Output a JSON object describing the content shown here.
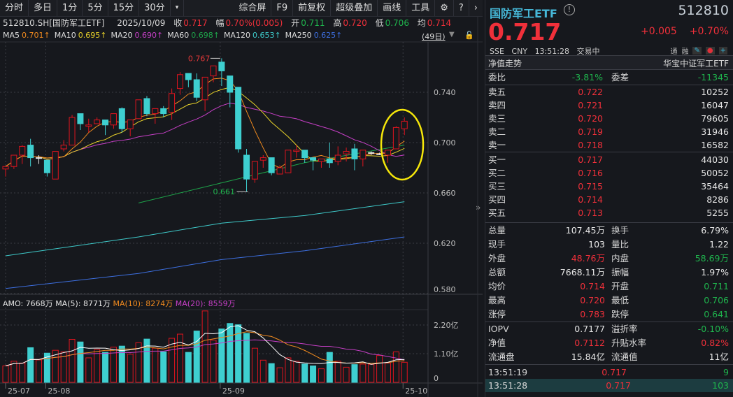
{
  "toolbar": {
    "left": [
      "分时",
      "多日",
      "1分",
      "5分",
      "15分",
      "30分"
    ],
    "dropdown_icon": "caret-down-icon",
    "right": [
      "综合屏",
      "F9",
      "前复权",
      "超级叠加",
      "画线",
      "工具"
    ],
    "icons": [
      "gear-icon",
      "help-icon",
      "chevron-right-icon"
    ]
  },
  "info": {
    "symbol": "512810.SH[国防军工ETF]",
    "date": "2025/10/09",
    "close_label": "收",
    "close": "0.717",
    "change_label": "幅",
    "change": "0.70%(0.005)",
    "open_label": "开",
    "open": "0.711",
    "high_label": "高",
    "high": "0.720",
    "low_label": "低",
    "low": "0.706",
    "avg_label": "均",
    "avg": "0.714"
  },
  "ma_legend": [
    {
      "label": "MA5",
      "value": "0.701↑",
      "color": "#f08a1e"
    },
    {
      "label": "MA10",
      "value": "0.695↑",
      "color": "#e8d22a"
    },
    {
      "label": "MA20",
      "value": "0.690↑",
      "color": "#c63fc6"
    },
    {
      "label": "MA60",
      "value": "0.698↑",
      "color": "#1ea44a"
    },
    {
      "label": "MA120",
      "value": "0.653↑",
      "color": "#3ec9c9"
    },
    {
      "label": "MA250",
      "value": "0.625↑",
      "color": "#3d6fe0"
    }
  ],
  "period_label": "(49日)",
  "vol_legend": {
    "amo": "AMO: 7668万",
    "ma5": "MA(5): 8771万",
    "ma10": "MA(10): 8274万",
    "ma20": "MA(20): 8559万"
  },
  "colors": {
    "up": "#e0141e",
    "down": "#3ecfd0",
    "ma5": "#f08a1e",
    "ma10": "#e8d22a",
    "ma20": "#c63fc6",
    "ma60": "#1ea44a",
    "ma120": "#3ec9c9",
    "ma250": "#3d6fe0",
    "highlight": "#f5e60a"
  },
  "chart_data": {
    "type": "candlestick",
    "price_ticks": [
      "0.740",
      "0.700",
      "0.660",
      "0.620",
      "0.580"
    ],
    "volume_ticks": [
      "2.20亿",
      "1.10亿",
      "0"
    ],
    "date_ticks": [
      {
        "label": "25-07",
        "index": 0
      },
      {
        "label": "25-08",
        "index": 5
      },
      {
        "label": "25-09",
        "index": 26
      },
      {
        "label": "25-10",
        "index": 48
      }
    ],
    "annotations": {
      "high": "0.767",
      "low": "0.661"
    },
    "ohlc": [
      [
        0.679,
        0.681,
        0.673,
        0.681
      ],
      [
        0.681,
        0.69,
        0.679,
        0.69
      ],
      [
        0.69,
        0.698,
        0.683,
        0.697
      ],
      [
        0.698,
        0.703,
        0.681,
        0.688
      ],
      [
        0.688,
        0.69,
        0.683,
        0.688
      ],
      [
        0.686,
        0.686,
        0.673,
        0.676
      ],
      [
        0.671,
        0.693,
        0.671,
        0.693
      ],
      [
        0.695,
        0.702,
        0.693,
        0.698
      ],
      [
        0.698,
        0.722,
        0.698,
        0.72
      ],
      [
        0.723,
        0.723,
        0.71,
        0.715
      ],
      [
        0.713,
        0.719,
        0.708,
        0.714
      ],
      [
        0.715,
        0.72,
        0.715,
        0.718
      ],
      [
        0.718,
        0.718,
        0.706,
        0.714
      ],
      [
        0.714,
        0.723,
        0.711,
        0.723
      ],
      [
        0.727,
        0.728,
        0.708,
        0.711
      ],
      [
        0.711,
        0.718,
        0.705,
        0.718
      ],
      [
        0.719,
        0.734,
        0.719,
        0.734
      ],
      [
        0.735,
        0.737,
        0.721,
        0.723
      ],
      [
        0.723,
        0.727,
        0.715,
        0.727
      ],
      [
        0.727,
        0.729,
        0.72,
        0.723
      ],
      [
        0.724,
        0.743,
        0.718,
        0.739
      ],
      [
        0.743,
        0.756,
        0.738,
        0.754
      ],
      [
        0.755,
        0.755,
        0.744,
        0.75
      ],
      [
        0.75,
        0.755,
        0.733,
        0.736
      ],
      [
        0.734,
        0.752,
        0.725,
        0.752
      ],
      [
        0.753,
        0.761,
        0.748,
        0.761
      ],
      [
        0.764,
        0.767,
        0.745,
        0.757
      ],
      [
        0.753,
        0.753,
        0.728,
        0.74
      ],
      [
        0.744,
        0.744,
        0.692,
        0.695
      ],
      [
        0.69,
        0.695,
        0.661,
        0.671
      ],
      [
        0.671,
        0.685,
        0.668,
        0.685
      ],
      [
        0.686,
        0.69,
        0.68,
        0.688
      ],
      [
        0.688,
        0.688,
        0.674,
        0.676
      ],
      [
        0.675,
        0.682,
        0.675,
        0.68
      ],
      [
        0.676,
        0.694,
        0.676,
        0.694
      ],
      [
        0.693,
        0.698,
        0.688,
        0.694
      ],
      [
        0.694,
        0.694,
        0.684,
        0.688
      ],
      [
        0.688,
        0.688,
        0.678,
        0.686
      ],
      [
        0.685,
        0.687,
        0.68,
        0.687
      ],
      [
        0.687,
        0.7,
        0.68,
        0.684
      ],
      [
        0.685,
        0.697,
        0.682,
        0.69
      ],
      [
        0.691,
        0.696,
        0.685,
        0.693
      ],
      [
        0.695,
        0.699,
        0.678,
        0.687
      ],
      [
        0.687,
        0.694,
        0.681,
        0.694
      ],
      [
        0.692,
        0.693,
        0.69,
        0.692
      ],
      [
        0.691,
        0.692,
        0.69,
        0.691
      ],
      [
        0.69,
        0.694,
        0.684,
        0.694
      ],
      [
        0.695,
        0.713,
        0.695,
        0.712
      ],
      [
        0.711,
        0.72,
        0.706,
        0.717
      ]
    ],
    "volume_yi": [
      0.63,
      0.81,
      0.74,
      1.33,
      0.86,
      1.12,
      1.23,
      1.17,
      1.65,
      1.55,
      0.94,
      1.26,
      1.15,
      1.35,
      1.39,
      1.08,
      1.52,
      1.66,
      1.31,
      1.17,
      1.69,
      1.85,
      1.15,
      1.97,
      2.74,
      1.62,
      2.05,
      2.26,
      2.21,
      1.88,
      1.31,
      0.85,
      0.72,
      0.56,
      0.94,
      0.81,
      0.7,
      0.63,
      0.52,
      1.15,
      0.81,
      0.58,
      0.68,
      0.7,
      0.69,
      1.03,
      0.74,
      1.17,
      0.77
    ],
    "ma60_points": [
      [
        16,
        0.652
      ],
      [
        26,
        0.668
      ],
      [
        36,
        0.684
      ],
      [
        48,
        0.698
      ]
    ],
    "ma120_points": [
      [
        0,
        0.61
      ],
      [
        16,
        0.625
      ],
      [
        26,
        0.636
      ],
      [
        36,
        0.642
      ],
      [
        48,
        0.653
      ]
    ],
    "ma250_points": [
      [
        0,
        0.584
      ],
      [
        16,
        0.596
      ],
      [
        26,
        0.607
      ],
      [
        36,
        0.614
      ],
      [
        48,
        0.625
      ]
    ]
  },
  "quote": {
    "name": "国防军工ETF",
    "info_icon": "info-icon",
    "code": "512810",
    "price": "0.717",
    "change": "+0.005",
    "change_pct": "+0.70%",
    "exchange": "SSE",
    "currency": "CNY",
    "time": "13:51:28",
    "status": "交易中",
    "badges": [
      "通",
      "融"
    ],
    "action_icons": [
      "pencil-icon",
      "bell-icon",
      "plus-icon"
    ]
  },
  "nav_row": {
    "label": "净值走势",
    "index_name": "华宝中证军工ETF"
  },
  "order_ratio": {
    "label": "委比",
    "value": "-3.81%",
    "diff_label": "委差",
    "diff": "-11345"
  },
  "asks": [
    {
      "label": "卖五",
      "price": "0.722",
      "vol": "10252"
    },
    {
      "label": "卖四",
      "price": "0.721",
      "vol": "16047"
    },
    {
      "label": "卖三",
      "price": "0.720",
      "vol": "79605"
    },
    {
      "label": "卖二",
      "price": "0.719",
      "vol": "31946"
    },
    {
      "label": "卖一",
      "price": "0.718",
      "vol": "16582"
    }
  ],
  "bids": [
    {
      "label": "买一",
      "price": "0.717",
      "vol": "44030"
    },
    {
      "label": "买二",
      "price": "0.716",
      "vol": "50052"
    },
    {
      "label": "买三",
      "price": "0.715",
      "vol": "35464"
    },
    {
      "label": "买四",
      "price": "0.714",
      "vol": "8286"
    },
    {
      "label": "买五",
      "price": "0.713",
      "vol": "5255"
    }
  ],
  "stats": [
    {
      "l1": "总量",
      "v1": "107.45万",
      "c1": "white",
      "l2": "换手",
      "v2": "6.79%",
      "c2": "white"
    },
    {
      "l1": "现手",
      "v1": "103",
      "c1": "white",
      "l2": "量比",
      "v2": "1.22",
      "c2": "white"
    },
    {
      "l1": "外盘",
      "v1": "48.76万",
      "c1": "red",
      "l2": "内盘",
      "v2": "58.69万",
      "c2": "green"
    },
    {
      "l1": "总额",
      "v1": "7668.11万",
      "c1": "white",
      "l2": "振幅",
      "v2": "1.97%",
      "c2": "white"
    },
    {
      "l1": "均价",
      "v1": "0.714",
      "c1": "red",
      "l2": "开盘",
      "v2": "0.711",
      "c2": "green"
    },
    {
      "l1": "最高",
      "v1": "0.720",
      "c1": "red",
      "l2": "最低",
      "v2": "0.706",
      "c2": "green"
    },
    {
      "l1": "涨停",
      "v1": "0.783",
      "c1": "red",
      "l2": "跌停",
      "v2": "0.641",
      "c2": "green"
    }
  ],
  "etf_stats": [
    {
      "l1": "IOPV",
      "v1": "0.7177",
      "c1": "white",
      "l2": "溢折率",
      "v2": "-0.10%",
      "c2": "green"
    },
    {
      "l1": "净值",
      "v1": "0.7112",
      "c1": "red",
      "l2": "升贴水率",
      "v2": "0.82%",
      "c2": "red"
    },
    {
      "l1": "流通盘",
      "v1": "15.84亿",
      "c1": "white",
      "l2": "流通值",
      "v2": "11亿",
      "c2": "white"
    }
  ],
  "ticks": [
    {
      "time": "13:51:19",
      "price": "0.717",
      "vol": "9"
    },
    {
      "time": "13:51:28",
      "price": "0.717",
      "vol": "103"
    }
  ]
}
